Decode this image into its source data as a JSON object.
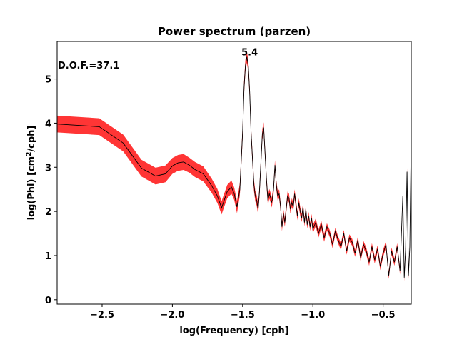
{
  "chart_data": {
    "type": "line",
    "title": "Power spectrum (parzen)",
    "xlabel": "log(Frequency) [cph]",
    "ylabel_prefix": "log(Phi) [cm",
    "ylabel_sup": "2",
    "ylabel_suffix": "/cph]",
    "xlim": [
      -2.82,
      -0.3
    ],
    "ylim": [
      -0.1,
      5.85
    ],
    "xticks": [
      -2.5,
      -2.0,
      -1.5,
      -1.0,
      -0.5
    ],
    "xtick_labels": [
      "−2.5",
      "−2.0",
      "−1.5",
      "−1.0",
      "−0.5"
    ],
    "yticks": [
      0,
      1,
      2,
      3,
      4,
      5
    ],
    "ytick_labels": [
      "0",
      "1",
      "2",
      "3",
      "4",
      "5"
    ],
    "grid": false,
    "band_color": "#ff2a2a",
    "line_color": "#000000",
    "series": [
      {
        "x": [
          -2.82,
          -2.52,
          -2.35,
          -2.22,
          -2.12,
          -2.05,
          -2.0,
          -1.96,
          -1.92,
          -1.88,
          -1.84,
          -1.78,
          -1.72,
          -1.68,
          -1.65,
          -1.61,
          -1.58,
          -1.56,
          -1.54,
          -1.52,
          -1.5,
          -1.49,
          -1.48,
          -1.47,
          -1.46,
          -1.45,
          -1.44,
          -1.43,
          -1.42,
          -1.41,
          -1.4,
          -1.39,
          -1.38,
          -1.37,
          -1.36,
          -1.35,
          -1.34,
          -1.33,
          -1.32,
          -1.31,
          -1.3,
          -1.295,
          -1.29,
          -1.28,
          -1.27,
          -1.26,
          -1.25,
          -1.24,
          -1.23,
          -1.22,
          -1.21,
          -1.2,
          -1.19,
          -1.185,
          -1.18,
          -1.17,
          -1.16,
          -1.15,
          -1.14,
          -1.13,
          -1.12,
          -1.11,
          -1.1,
          -1.09,
          -1.08,
          -1.07,
          -1.06,
          -1.05,
          -1.04,
          -1.03,
          -1.02,
          -1.01,
          -1.0,
          -0.98,
          -0.96,
          -0.94,
          -0.92,
          -0.9,
          -0.88,
          -0.86,
          -0.84,
          -0.82,
          -0.8,
          -0.78,
          -0.76,
          -0.74,
          -0.72,
          -0.7,
          -0.68,
          -0.66,
          -0.64,
          -0.62,
          -0.6,
          -0.58,
          -0.56,
          -0.54,
          -0.52,
          -0.5,
          -0.48,
          -0.46,
          -0.44,
          -0.42,
          -0.4,
          -0.38,
          -0.36,
          -0.35,
          -0.34,
          -0.33,
          -0.32,
          -0.31,
          -0.3
        ],
        "y": [
          3.98,
          3.92,
          3.55,
          2.98,
          2.8,
          2.85,
          3.03,
          3.1,
          3.12,
          3.05,
          2.95,
          2.85,
          2.58,
          2.35,
          2.08,
          2.45,
          2.55,
          2.4,
          2.1,
          2.5,
          3.8,
          4.8,
          5.3,
          5.5,
          5.3,
          4.7,
          3.8,
          3.2,
          2.6,
          2.35,
          2.25,
          2.05,
          2.45,
          3.1,
          3.75,
          3.9,
          3.3,
          2.7,
          2.25,
          2.4,
          2.3,
          2.2,
          2.25,
          2.5,
          3.05,
          2.6,
          2.35,
          2.4,
          2.1,
          1.65,
          1.95,
          1.75,
          2.05,
          2.2,
          2.35,
          2.3,
          2.05,
          2.2,
          2.1,
          2.4,
          2.15,
          1.9,
          2.2,
          2.0,
          1.85,
          2.1,
          1.75,
          2.05,
          1.7,
          1.9,
          1.65,
          1.85,
          1.6,
          1.75,
          1.5,
          1.7,
          1.4,
          1.65,
          1.5,
          1.25,
          1.55,
          1.35,
          1.2,
          1.5,
          1.1,
          1.4,
          1.3,
          1.05,
          1.35,
          0.95,
          1.25,
          1.1,
          0.85,
          1.2,
          0.9,
          1.15,
          0.75,
          1.05,
          1.25,
          0.55,
          1.1,
          0.85,
          1.2,
          0.65,
          2.35,
          0.5,
          1.15,
          2.9,
          0.55,
          1.2,
          3.7
        ],
        "err": [
          0.19,
          0.19,
          0.19,
          0.19,
          0.19,
          0.19,
          0.18,
          0.18,
          0.18,
          0.17,
          0.17,
          0.17,
          0.16,
          0.16,
          0.15,
          0.15,
          0.15,
          0.14,
          0.14,
          0.14,
          0.14,
          0.14,
          0.14,
          0.13,
          0.13,
          0.13,
          0.13,
          0.13,
          0.13,
          0.12,
          0.12,
          0.12,
          0.12,
          0.12,
          0.12,
          0.12,
          0.12,
          0.11,
          0.11,
          0.11,
          0.11,
          0.11,
          0.11,
          0.11,
          0.11,
          0.11,
          0.11,
          0.1,
          0.1,
          0.1,
          0.1,
          0.1,
          0.1,
          0.1,
          0.1,
          0.1,
          0.1,
          0.1,
          0.1,
          0.1,
          0.1,
          0.1,
          0.1,
          0.1,
          0.09,
          0.09,
          0.09,
          0.09,
          0.09,
          0.09,
          0.09,
          0.09,
          0.09,
          0.09,
          0.09,
          0.09,
          0.09,
          0.08,
          0.08,
          0.08,
          0.08,
          0.08,
          0.08,
          0.08,
          0.08,
          0.08,
          0.08,
          0.08,
          0.08,
          0.08,
          0.08,
          0.08,
          0.08,
          0.08,
          0.08,
          0.08,
          0.08,
          0.08,
          0.08,
          0.08,
          0.08,
          0.08,
          0.08,
          0.08,
          0.08,
          0.08,
          0.08,
          0.08,
          0.08,
          0.08,
          0.08
        ]
      }
    ],
    "annotations": [
      {
        "text": "D.O.F.=37.1",
        "anchor": "top-left"
      },
      {
        "text": "5.4",
        "x": -1.45,
        "y": 5.5
      }
    ]
  }
}
